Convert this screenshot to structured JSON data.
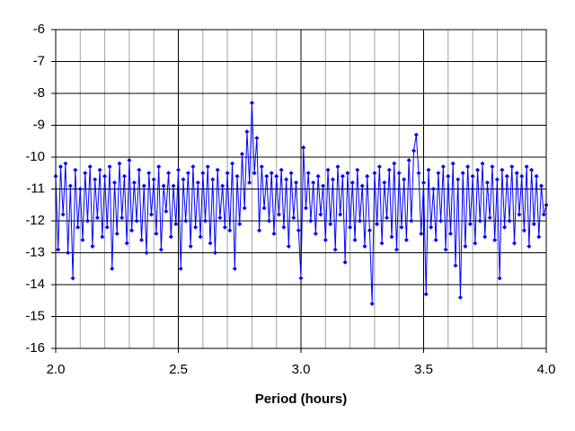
{
  "chart_data": {
    "type": "line",
    "x_label": "Period (hours)",
    "x": [
      2.0,
      2.01,
      2.02,
      2.03,
      2.04,
      2.05,
      2.06,
      2.07,
      2.08,
      2.09,
      2.1,
      2.11,
      2.12,
      2.13,
      2.14,
      2.15,
      2.16,
      2.17,
      2.18,
      2.19,
      2.2,
      2.21,
      2.22,
      2.23,
      2.24,
      2.25,
      2.26,
      2.27,
      2.28,
      2.29,
      2.3,
      2.31,
      2.32,
      2.33,
      2.34,
      2.35,
      2.36,
      2.37,
      2.38,
      2.39,
      2.4,
      2.41,
      2.42,
      2.43,
      2.44,
      2.45,
      2.46,
      2.47,
      2.48,
      2.49,
      2.5,
      2.51,
      2.52,
      2.53,
      2.54,
      2.55,
      2.56,
      2.57,
      2.58,
      2.59,
      2.6,
      2.61,
      2.62,
      2.63,
      2.64,
      2.65,
      2.66,
      2.67,
      2.68,
      2.69,
      2.7,
      2.71,
      2.72,
      2.73,
      2.74,
      2.75,
      2.76,
      2.77,
      2.78,
      2.79,
      2.8,
      2.81,
      2.82,
      2.83,
      2.84,
      2.85,
      2.86,
      2.87,
      2.88,
      2.89,
      2.9,
      2.91,
      2.92,
      2.93,
      2.94,
      2.95,
      2.96,
      2.97,
      2.98,
      2.99,
      3.0,
      3.01,
      3.02,
      3.03,
      3.04,
      3.05,
      3.06,
      3.07,
      3.08,
      3.09,
      3.1,
      3.11,
      3.12,
      3.13,
      3.14,
      3.15,
      3.16,
      3.17,
      3.18,
      3.19,
      3.2,
      3.21,
      3.22,
      3.23,
      3.24,
      3.25,
      3.26,
      3.27,
      3.28,
      3.29,
      3.3,
      3.31,
      3.32,
      3.33,
      3.34,
      3.35,
      3.36,
      3.37,
      3.38,
      3.39,
      3.4,
      3.41,
      3.42,
      3.43,
      3.44,
      3.45,
      3.46,
      3.47,
      3.48,
      3.49,
      3.5,
      3.51,
      3.52,
      3.53,
      3.54,
      3.55,
      3.56,
      3.57,
      3.58,
      3.59,
      3.6,
      3.61,
      3.62,
      3.63,
      3.64,
      3.65,
      3.66,
      3.67,
      3.68,
      3.69,
      3.7,
      3.71,
      3.72,
      3.73,
      3.74,
      3.75,
      3.76,
      3.77,
      3.78,
      3.79,
      3.8,
      3.81,
      3.82,
      3.83,
      3.84,
      3.85,
      3.86,
      3.87,
      3.88,
      3.89,
      3.9,
      3.91,
      3.92,
      3.93,
      3.94,
      3.95,
      3.96,
      3.97,
      3.98,
      3.99,
      4.0
    ],
    "series": [
      {
        "color": "#0000ff",
        "values": [
          -10.6,
          -12.9,
          -10.3,
          -11.8,
          -10.2,
          -13.0,
          -10.9,
          -13.8,
          -10.4,
          -12.2,
          -11.0,
          -12.6,
          -10.5,
          -12.0,
          -10.3,
          -12.8,
          -10.7,
          -11.9,
          -10.4,
          -12.5,
          -10.6,
          -12.2,
          -10.3,
          -13.5,
          -10.8,
          -12.4,
          -10.2,
          -11.9,
          -10.6,
          -12.7,
          -10.1,
          -12.3,
          -10.8,
          -12.0,
          -10.4,
          -12.6,
          -10.9,
          -13.0,
          -10.5,
          -11.8,
          -10.7,
          -12.4,
          -10.3,
          -12.9,
          -10.9,
          -11.7,
          -10.5,
          -12.5,
          -10.9,
          -12.1,
          -10.4,
          -13.5,
          -10.7,
          -12.0,
          -10.5,
          -12.8,
          -10.3,
          -12.2,
          -10.8,
          -12.5,
          -10.5,
          -12.0,
          -10.3,
          -12.7,
          -10.7,
          -13.0,
          -10.4,
          -11.9,
          -10.9,
          -12.2,
          -10.5,
          -12.3,
          -10.2,
          -13.5,
          -10.6,
          -12.1,
          -9.9,
          -11.6,
          -9.2,
          -10.8,
          -8.3,
          -10.5,
          -9.4,
          -12.3,
          -10.3,
          -11.6,
          -10.6,
          -12.0,
          -10.5,
          -12.4,
          -10.6,
          -11.8,
          -10.4,
          -12.2,
          -10.7,
          -12.8,
          -10.5,
          -11.9,
          -10.8,
          -12.3,
          -13.8,
          -9.7,
          -11.6,
          -10.5,
          -12.0,
          -10.8,
          -12.4,
          -10.6,
          -11.8,
          -10.9,
          -12.6,
          -10.4,
          -12.1,
          -10.7,
          -12.9,
          -10.3,
          -11.8,
          -10.6,
          -13.3,
          -10.5,
          -12.2,
          -10.8,
          -12.6,
          -10.4,
          -12.0,
          -10.9,
          -12.8,
          -10.6,
          -12.3,
          -14.6,
          -10.5,
          -12.1,
          -10.3,
          -12.7,
          -10.8,
          -11.9,
          -10.4,
          -12.5,
          -10.2,
          -12.9,
          -10.5,
          -12.2,
          -10.7,
          -12.6,
          -10.1,
          -12.0,
          -9.8,
          -9.3,
          -10.5,
          -12.4,
          -10.8,
          -14.3,
          -10.4,
          -12.2,
          -11.0,
          -12.6,
          -10.5,
          -12.0,
          -10.3,
          -12.9,
          -10.6,
          -12.4,
          -10.2,
          -13.4,
          -10.7,
          -14.4,
          -10.5,
          -12.8,
          -10.3,
          -12.1,
          -10.6,
          -12.7,
          -10.4,
          -12.0,
          -10.2,
          -12.5,
          -10.8,
          -11.9,
          -10.3,
          -12.6,
          -10.7,
          -13.8,
          -10.4,
          -12.2,
          -10.6,
          -12.0,
          -10.3,
          -12.7,
          -10.5,
          -11.8,
          -10.6,
          -12.3,
          -10.3,
          -12.8,
          -10.4,
          -12.1,
          -10.6,
          -12.5,
          -10.9,
          -11.8,
          -11.5
        ]
      }
    ],
    "xlim": [
      2,
      4
    ],
    "xticks": [
      {
        "value": 2,
        "label": "2.0"
      },
      2.5,
      {
        "value": 3,
        "label": "3.0"
      },
      3.5,
      {
        "value": 4,
        "label": "4.0"
      }
    ],
    "x_minor_grid": [
      2.1,
      2.2,
      2.3,
      2.4,
      2.6,
      2.7,
      2.8,
      2.9,
      3.1,
      3.2,
      3.3,
      3.4,
      3.6,
      3.7,
      3.8,
      3.9
    ],
    "ylim": [
      -16,
      -6
    ],
    "yticks": [
      -16,
      -15,
      -14,
      -13,
      -12,
      -11,
      -10,
      -9,
      -8,
      -7,
      -6
    ],
    "grid": true
  }
}
